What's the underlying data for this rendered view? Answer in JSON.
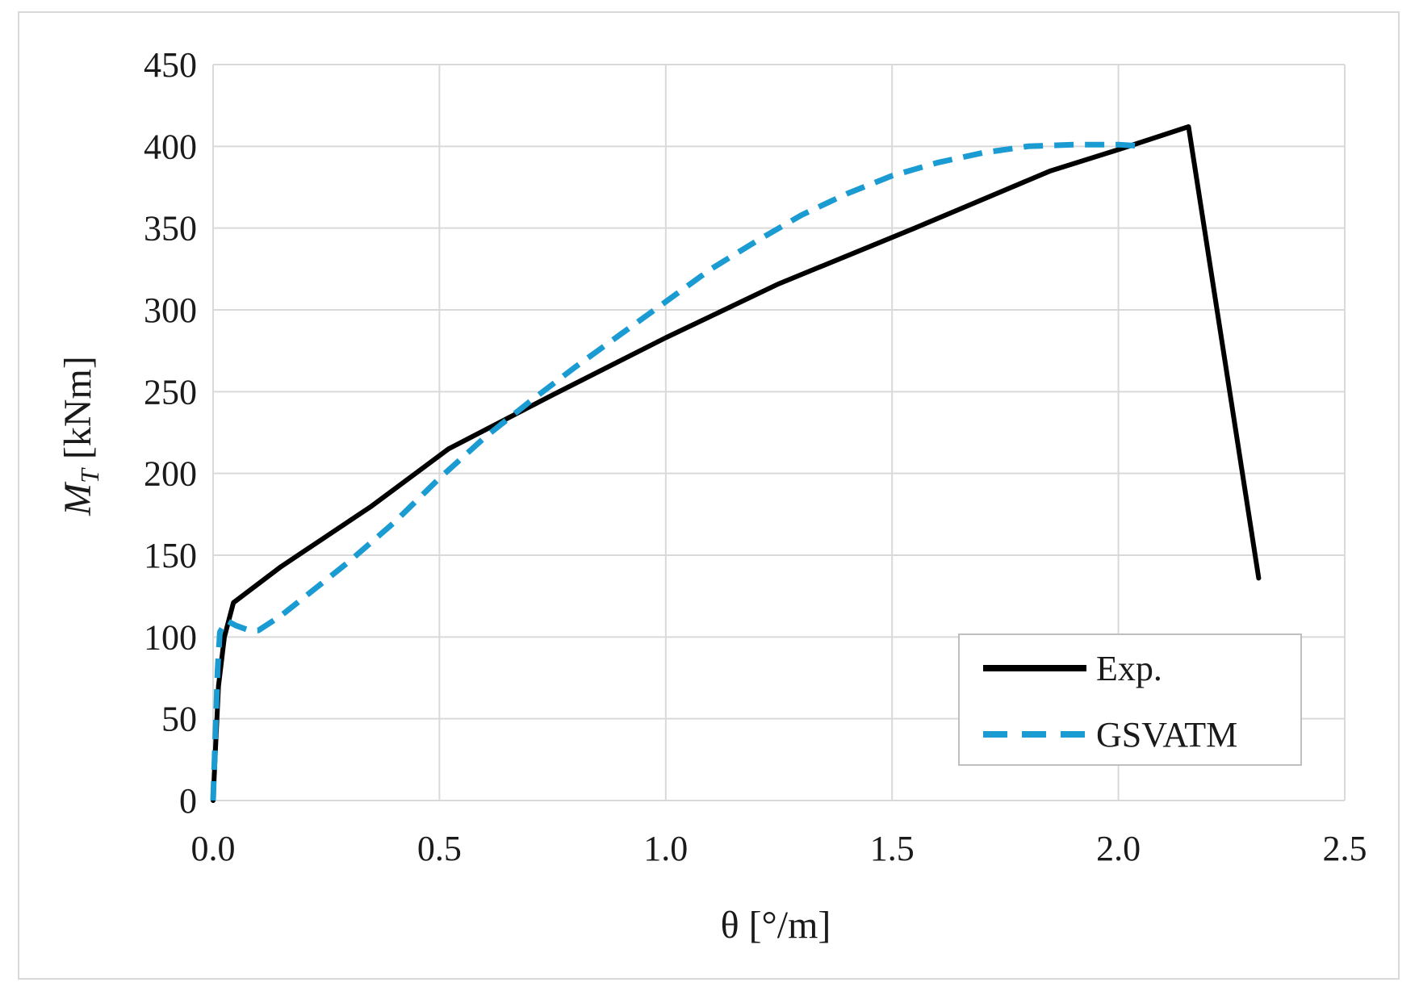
{
  "chart_data": {
    "type": "line",
    "title": "",
    "xlabel": "θ [°/m]",
    "ylabel_main": "M",
    "ylabel_sub": "T",
    "ylabel_unit": " [kNm]",
    "xlim": [
      0,
      2.5
    ],
    "ylim": [
      0,
      450
    ],
    "xticks": [
      0,
      0.5,
      1.0,
      1.5,
      2.0,
      2.5
    ],
    "xtick_labels": [
      "0.0",
      "0.5",
      "1.0",
      "1.5",
      "2.0",
      "2.5"
    ],
    "yticks": [
      0,
      50,
      100,
      150,
      200,
      250,
      300,
      350,
      400,
      450
    ],
    "ytick_labels": [
      "0",
      "50",
      "100",
      "150",
      "200",
      "250",
      "300",
      "350",
      "400",
      "450"
    ],
    "grid": true,
    "legend_position": "bottom-right",
    "series": [
      {
        "name": "Exp.",
        "color": "#000000",
        "style": "solid",
        "points": [
          [
            0,
            0
          ],
          [
            0.005,
            30
          ],
          [
            0.012,
            70
          ],
          [
            0.025,
            100
          ],
          [
            0.045,
            121
          ],
          [
            0.15,
            143
          ],
          [
            0.35,
            180
          ],
          [
            0.52,
            215
          ],
          [
            0.75,
            248
          ],
          [
            1.0,
            283
          ],
          [
            1.25,
            316
          ],
          [
            1.55,
            350
          ],
          [
            1.85,
            385
          ],
          [
            2.0,
            398
          ],
          [
            2.155,
            412
          ],
          [
            2.31,
            136
          ]
        ]
      },
      {
        "name": "GSVATM",
        "color": "#1a9bd1",
        "style": "dashed",
        "points": [
          [
            0,
            0
          ],
          [
            0.005,
            40
          ],
          [
            0.01,
            80
          ],
          [
            0.015,
            103
          ],
          [
            0.03,
            110
          ],
          [
            0.05,
            107
          ],
          [
            0.08,
            104
          ],
          [
            0.1,
            104
          ],
          [
            0.15,
            113
          ],
          [
            0.2,
            124
          ],
          [
            0.3,
            146
          ],
          [
            0.4,
            170
          ],
          [
            0.5,
            197
          ],
          [
            0.6,
            222
          ],
          [
            0.7,
            244
          ],
          [
            0.8,
            265
          ],
          [
            0.9,
            285
          ],
          [
            1.0,
            305
          ],
          [
            1.1,
            325
          ],
          [
            1.2,
            342
          ],
          [
            1.3,
            358
          ],
          [
            1.4,
            371
          ],
          [
            1.5,
            382
          ],
          [
            1.6,
            390
          ],
          [
            1.7,
            396
          ],
          [
            1.8,
            400
          ],
          [
            1.9,
            401
          ],
          [
            2.0,
            401
          ],
          [
            2.06,
            400
          ]
        ]
      }
    ]
  }
}
